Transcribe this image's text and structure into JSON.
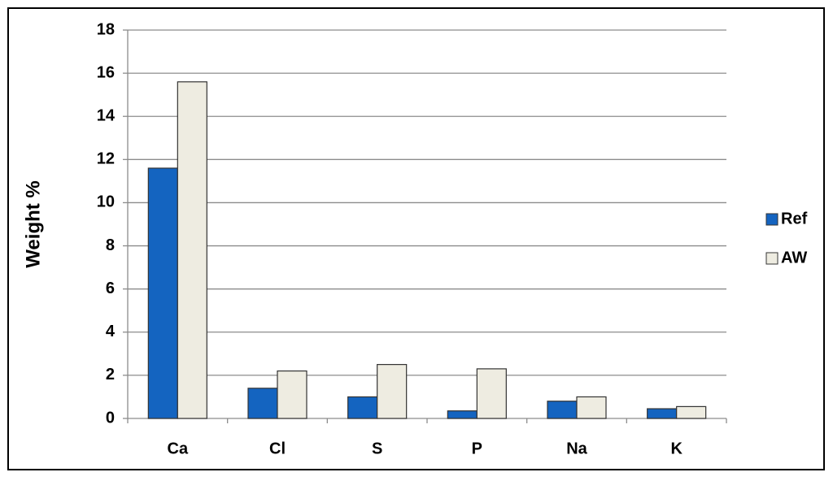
{
  "chart_data": {
    "type": "bar",
    "y_label": "Weight %",
    "categories": [
      "Ca",
      "Cl",
      "S",
      "P",
      "Na",
      "K"
    ],
    "series": [
      {
        "name": "Ref",
        "color": "#1464c0",
        "values": [
          11.6,
          1.4,
          1.0,
          0.35,
          0.8,
          0.45
        ]
      },
      {
        "name": "AW",
        "color": "#eeece1",
        "values": [
          15.6,
          2.2,
          2.5,
          2.3,
          1.0,
          0.55
        ]
      }
    ],
    "ylim": [
      0,
      18
    ],
    "yticks": [
      0,
      2,
      4,
      6,
      8,
      10,
      12,
      14,
      16,
      18
    ],
    "grid": true,
    "legend": "right"
  }
}
